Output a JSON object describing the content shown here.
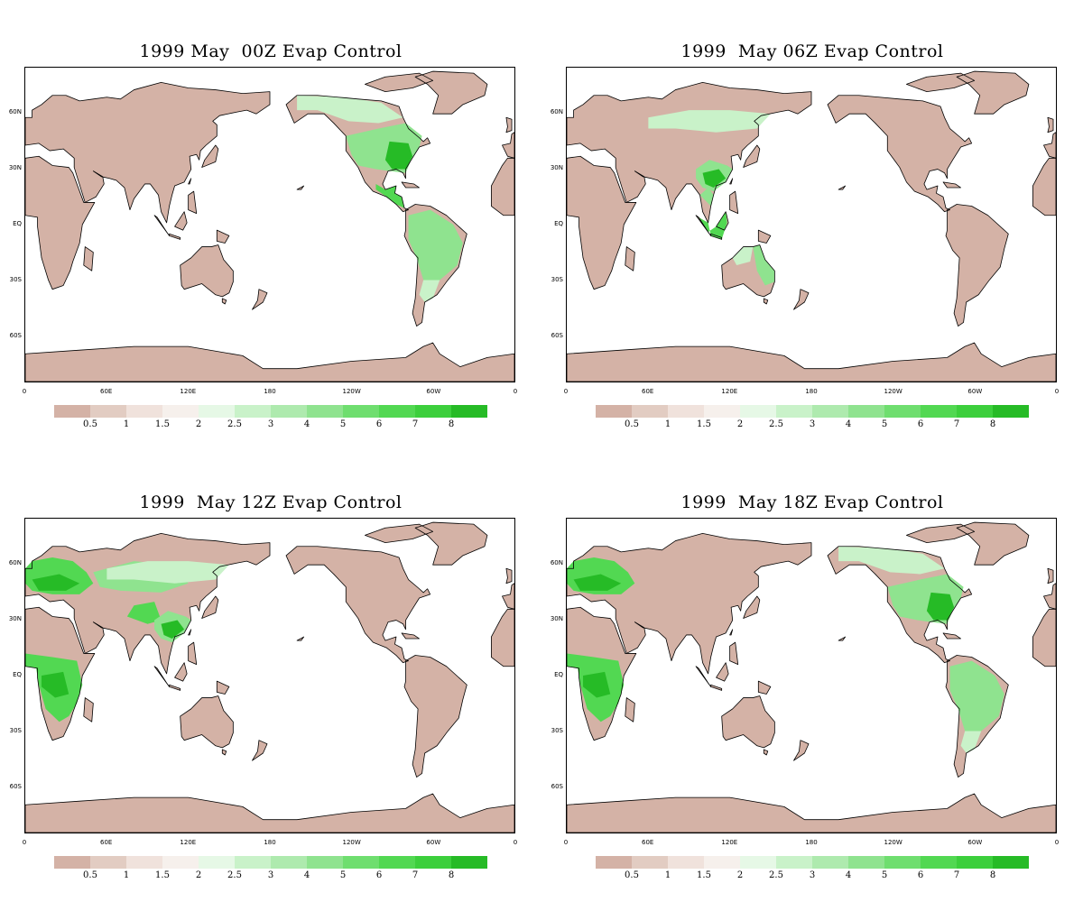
{
  "map_data": {
    "lat_ticks": [
      "60N",
      "30N",
      "EQ",
      "30S",
      "60S"
    ],
    "lon_ticks": [
      "0",
      "60E",
      "120E",
      "180",
      "120W",
      "60W",
      "0"
    ],
    "colorbar": {
      "colors": [
        "#d4b2a6",
        "#e2ccc2",
        "#f0e2dc",
        "#f6f0ec",
        "#e6f8e6",
        "#c9f2c9",
        "#aeeaae",
        "#8fe38f",
        "#6fde6f",
        "#52d852",
        "#3ccf3c",
        "#26bb26"
      ],
      "labels": [
        "0.5",
        "1",
        "1.5",
        "2",
        "2.5",
        "3",
        "4",
        "5",
        "6",
        "7",
        "8"
      ]
    }
  },
  "panels": [
    {
      "title": "1999 May  00Z Evap Control",
      "green_regions": [
        "north-america",
        "central-america",
        "south-america"
      ]
    },
    {
      "title": "1999  May 06Z Evap Control",
      "green_regions": [
        "asia-east",
        "southeast-asia",
        "australia-east"
      ]
    },
    {
      "title": "1999  May 12Z Evap Control",
      "green_regions": [
        "europe",
        "asia-central",
        "africa",
        "asia-east"
      ]
    },
    {
      "title": "1999  May 18Z Evap Control",
      "green_regions": [
        "europe",
        "africa",
        "north-america",
        "south-america"
      ]
    }
  ]
}
